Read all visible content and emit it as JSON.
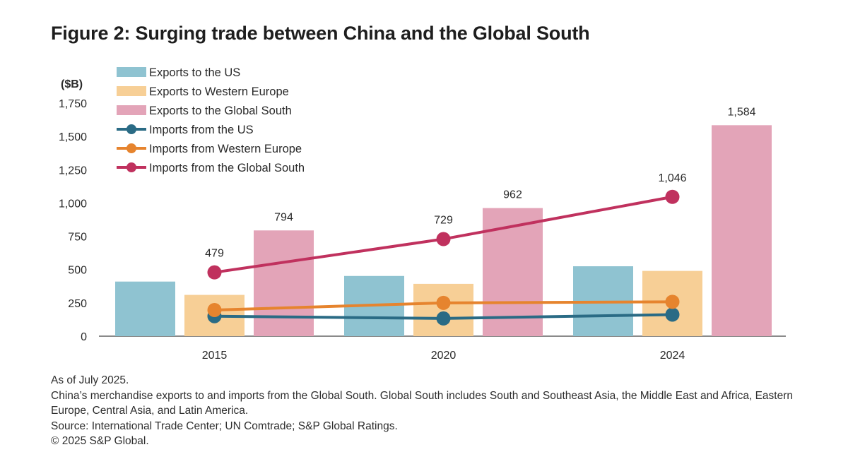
{
  "title": "Figure 2: Surging trade between China and the Global South",
  "notes": {
    "as_of": "As of July 2025.",
    "description": "China’s merchandise exports to and imports from the Global South. Global South includes South and Southeast Asia, the Middle East and Africa, Eastern Europe, Central Asia, and Latin America.",
    "source": "Source: International Trade Center; UN Comtrade; S&P Global Ratings.",
    "copyright": "© 2025 S&P Global."
  },
  "chart_data": {
    "type": "bar",
    "ylabel": "($B)",
    "ylim": [
      0,
      1750
    ],
    "yticks": [
      0,
      250,
      500,
      750,
      1000,
      1250,
      1500,
      1750
    ],
    "ytick_labels": [
      "0",
      "250",
      "500",
      "750",
      "1,000",
      "1,250",
      "1,500",
      "1,750"
    ],
    "categories": [
      "2015",
      "2020",
      "2024"
    ],
    "grid": false,
    "legend_position": "top-left",
    "bar_series": [
      {
        "name": "Exports to the US",
        "color": "#8fc3d1",
        "values": [
          410,
          452,
          525
        ],
        "labels": [
          null,
          null,
          null
        ]
      },
      {
        "name": "Exports to Western Europe",
        "color": "#f7cf96",
        "values": [
          310,
          393,
          490
        ],
        "labels": [
          null,
          null,
          null
        ]
      },
      {
        "name": "Exports to the Global South",
        "color": "#e3a4b8",
        "values": [
          794,
          962,
          1584
        ],
        "labels": [
          "794",
          "962",
          "1,584"
        ]
      }
    ],
    "line_series": [
      {
        "name": "Imports from the US",
        "color": "#2a6b85",
        "values": [
          150,
          133,
          162
        ],
        "labels": [
          null,
          null,
          null
        ]
      },
      {
        "name": "Imports from Western Europe",
        "color": "#e6842e",
        "values": [
          196,
          250,
          258
        ],
        "labels": [
          null,
          null,
          null
        ]
      },
      {
        "name": "Imports from the Global South",
        "color": "#c0315e",
        "values": [
          479,
          729,
          1046
        ],
        "labels": [
          "479",
          "729",
          "1,046"
        ]
      }
    ]
  }
}
